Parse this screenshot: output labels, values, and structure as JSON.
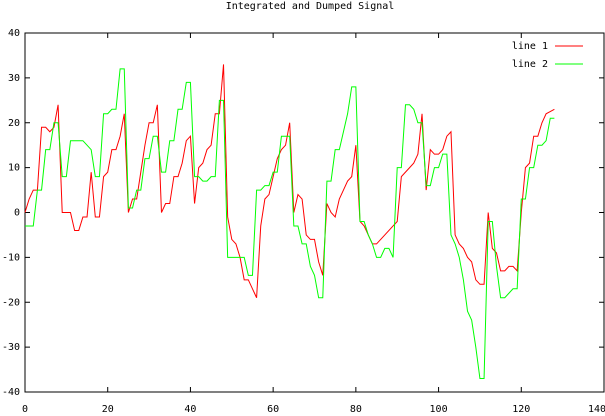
{
  "chart_data": {
    "type": "line",
    "title": "Integrated and Dumped Signal",
    "x": [
      0,
      1,
      2,
      3,
      4,
      5,
      6,
      7,
      8,
      9,
      10,
      11,
      12,
      13,
      14,
      15,
      16,
      17,
      18,
      19,
      20,
      21,
      22,
      23,
      24,
      25,
      26,
      27,
      28,
      29,
      30,
      31,
      32,
      33,
      34,
      35,
      36,
      37,
      38,
      39,
      40,
      41,
      42,
      43,
      44,
      45,
      46,
      47,
      48,
      49,
      50,
      51,
      52,
      53,
      54,
      55,
      56,
      57,
      58,
      59,
      60,
      61,
      62,
      63,
      64,
      65,
      66,
      67,
      68,
      69,
      70,
      71,
      72,
      73,
      74,
      75,
      76,
      77,
      78,
      79,
      80,
      81,
      82,
      83,
      84,
      85,
      86,
      87,
      88,
      89,
      90,
      91,
      92,
      93,
      94,
      95,
      96,
      97,
      98,
      99,
      100,
      101,
      102,
      103,
      104,
      105,
      106,
      107,
      108,
      109,
      110,
      111,
      112,
      113,
      114,
      115,
      116,
      117,
      118,
      119,
      120,
      121,
      122,
      123,
      124,
      125,
      126,
      127,
      128
    ],
    "series": [
      {
        "name": "line 1",
        "color": "#ff0000",
        "values": [
          0,
          3,
          5,
          5,
          19,
          19,
          18,
          19,
          24,
          0,
          0,
          0,
          -4,
          -4,
          -1,
          -1,
          9,
          -1,
          -1,
          8,
          9,
          14,
          14,
          17,
          22,
          0,
          3,
          3,
          9,
          15,
          20,
          20,
          24,
          0,
          2,
          2,
          8,
          8,
          11,
          16,
          17,
          2,
          10,
          11,
          14,
          15,
          22,
          22,
          33,
          -1,
          -6,
          -7,
          -10,
          -15,
          -15,
          -17,
          -19,
          -3,
          3,
          4,
          8,
          12,
          14,
          15,
          20,
          0,
          4,
          3,
          -5,
          -6,
          -6,
          -11,
          -14,
          2,
          0,
          -1,
          3,
          5,
          7,
          8,
          15,
          -2,
          -3,
          -5,
          -7,
          -7,
          -6,
          -5,
          -4,
          -3,
          -2,
          8,
          9,
          10,
          11,
          13,
          22,
          5,
          14,
          13,
          13,
          14,
          17,
          18,
          -5,
          -7,
          -8,
          -10,
          -11,
          -15,
          -16,
          -16,
          0,
          -8,
          -9,
          -13,
          -13,
          -12,
          -12,
          -13,
          0,
          10,
          11,
          17,
          17,
          20,
          22,
          22.5,
          23
        ]
      },
      {
        "name": "line 2",
        "color": "#00ff00",
        "values": [
          -3,
          -3,
          -3,
          5,
          5,
          14,
          14,
          20,
          20,
          8,
          8,
          16,
          16,
          16,
          16,
          15,
          14,
          8,
          8,
          22,
          22,
          23,
          23,
          32,
          32,
          1,
          1,
          5,
          5,
          12,
          12,
          17,
          17,
          9,
          9,
          16,
          16,
          23,
          23,
          29,
          29,
          8,
          8,
          7,
          7,
          8,
          8,
          25,
          25,
          -10,
          -10,
          -10,
          -10,
          -10,
          -14,
          -14,
          5,
          5,
          6,
          6,
          9,
          9,
          17,
          17,
          17,
          -3,
          -3,
          -7,
          -7,
          -12,
          -14,
          -19,
          -19,
          7,
          7,
          14,
          14,
          18,
          22,
          28,
          28,
          -2,
          -2,
          -5,
          -7,
          -10,
          -10,
          -8,
          -8,
          -10,
          10,
          10,
          24,
          24,
          23,
          20,
          20,
          6,
          6,
          10,
          10,
          13,
          13,
          -5,
          -7,
          -10,
          -15,
          -22,
          -24,
          -30,
          -37,
          -37,
          -2,
          -2,
          -12,
          -19,
          -19,
          -18,
          -17,
          -17,
          3,
          3,
          10,
          10,
          15,
          15,
          16,
          21,
          21
        ]
      }
    ],
    "xlim": [
      0,
      140
    ],
    "xticks": [
      0,
      20,
      40,
      60,
      80,
      100,
      120,
      140
    ],
    "ylim": [
      -40,
      40
    ],
    "yticks": [
      -40,
      -30,
      -20,
      -10,
      0,
      10,
      20,
      30,
      40
    ],
    "legend": "top-right",
    "grid": false
  }
}
